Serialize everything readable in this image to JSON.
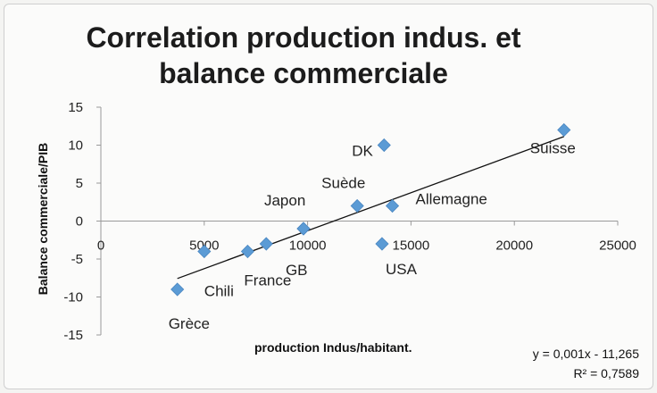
{
  "chart_data": {
    "type": "scatter",
    "title_lines": [
      "Correlation production indus. et",
      "balance commerciale"
    ],
    "xlabel": "production Indus/habitant.",
    "ylabel": "Balance commerciale/PIB",
    "xlim": [
      0,
      25000
    ],
    "ylim": [
      -15,
      15
    ],
    "x_ticks": [
      "0",
      "5000",
      "10000",
      "15000",
      "20000",
      "25000"
    ],
    "y_ticks": [
      "15",
      "10",
      "5",
      "0",
      "-5",
      "-10",
      "-15"
    ],
    "marker_color": "#5b9bd5",
    "trendline": {
      "slope": 0.001,
      "intercept": -11.265,
      "x_range": [
        3700,
        22400
      ]
    },
    "equation": "y = 0,001x - 11,265",
    "r_squared": "R² = 0,7589",
    "points": [
      {
        "label": "Grèce",
        "x": 3700,
        "y": -9
      },
      {
        "label": "Chili",
        "x": 5000,
        "y": -4
      },
      {
        "label": "France",
        "x": 7100,
        "y": -4
      },
      {
        "label": "",
        "x": 8000,
        "y": -3
      },
      {
        "label": "GB",
        "x": 9800,
        "y": -1
      },
      {
        "label": "Japon",
        "x": 9800,
        "y": -1
      },
      {
        "label": "Suède",
        "x": 12400,
        "y": 2
      },
      {
        "label": "USA",
        "x": 13600,
        "y": -3
      },
      {
        "label": "DK",
        "x": 13700,
        "y": 10
      },
      {
        "label": "Allemagne",
        "x": 14100,
        "y": 2
      },
      {
        "label": "Suisse",
        "x": 22400,
        "y": 12
      }
    ]
  }
}
